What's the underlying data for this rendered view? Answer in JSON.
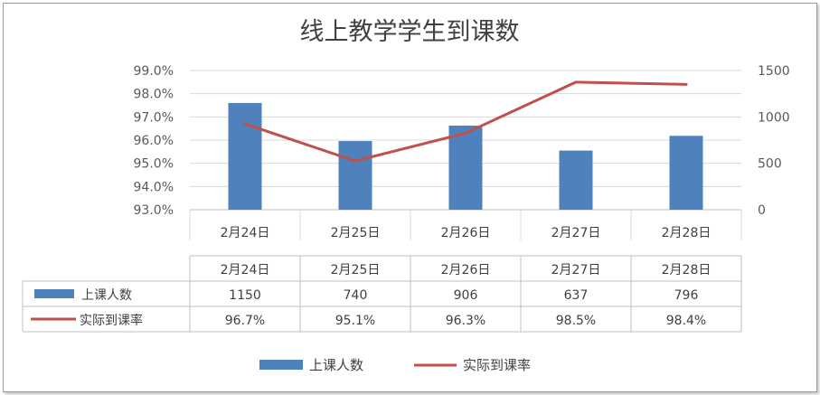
{
  "chart_data": {
    "type": "bar",
    "title": "线上教学学生到课数",
    "categories": [
      "2月24日",
      "2月25日",
      "2月26日",
      "2月27日",
      "2月28日"
    ],
    "series": [
      {
        "name": "上课人数",
        "type": "bar",
        "axis": "right",
        "values": [
          1150,
          740,
          906,
          637,
          796
        ],
        "labels": [
          "1150",
          "740",
          "906",
          "637",
          "796"
        ]
      },
      {
        "name": "实际到课率",
        "type": "line",
        "axis": "left",
        "values": [
          96.7,
          95.1,
          96.3,
          98.5,
          98.4
        ],
        "labels": [
          "96.7%",
          "95.1%",
          "96.3%",
          "98.5%",
          "98.4%"
        ]
      }
    ],
    "y_left": {
      "min": 93.0,
      "max": 99.0,
      "step": 1.0,
      "tick_labels": [
        "93.0%",
        "94.0%",
        "95.0%",
        "96.0%",
        "97.0%",
        "98.0%",
        "99.0%"
      ]
    },
    "y_right": {
      "min": 0,
      "max": 1500,
      "step": 500,
      "tick_labels": [
        "0",
        "500",
        "1000",
        "1500"
      ]
    },
    "grid": true,
    "legend": "bottom",
    "data_table": true,
    "colors": {
      "bar": "#4f81bd",
      "line": "#c0504d",
      "grid": "#d9d9d9",
      "text": "#404040"
    }
  }
}
